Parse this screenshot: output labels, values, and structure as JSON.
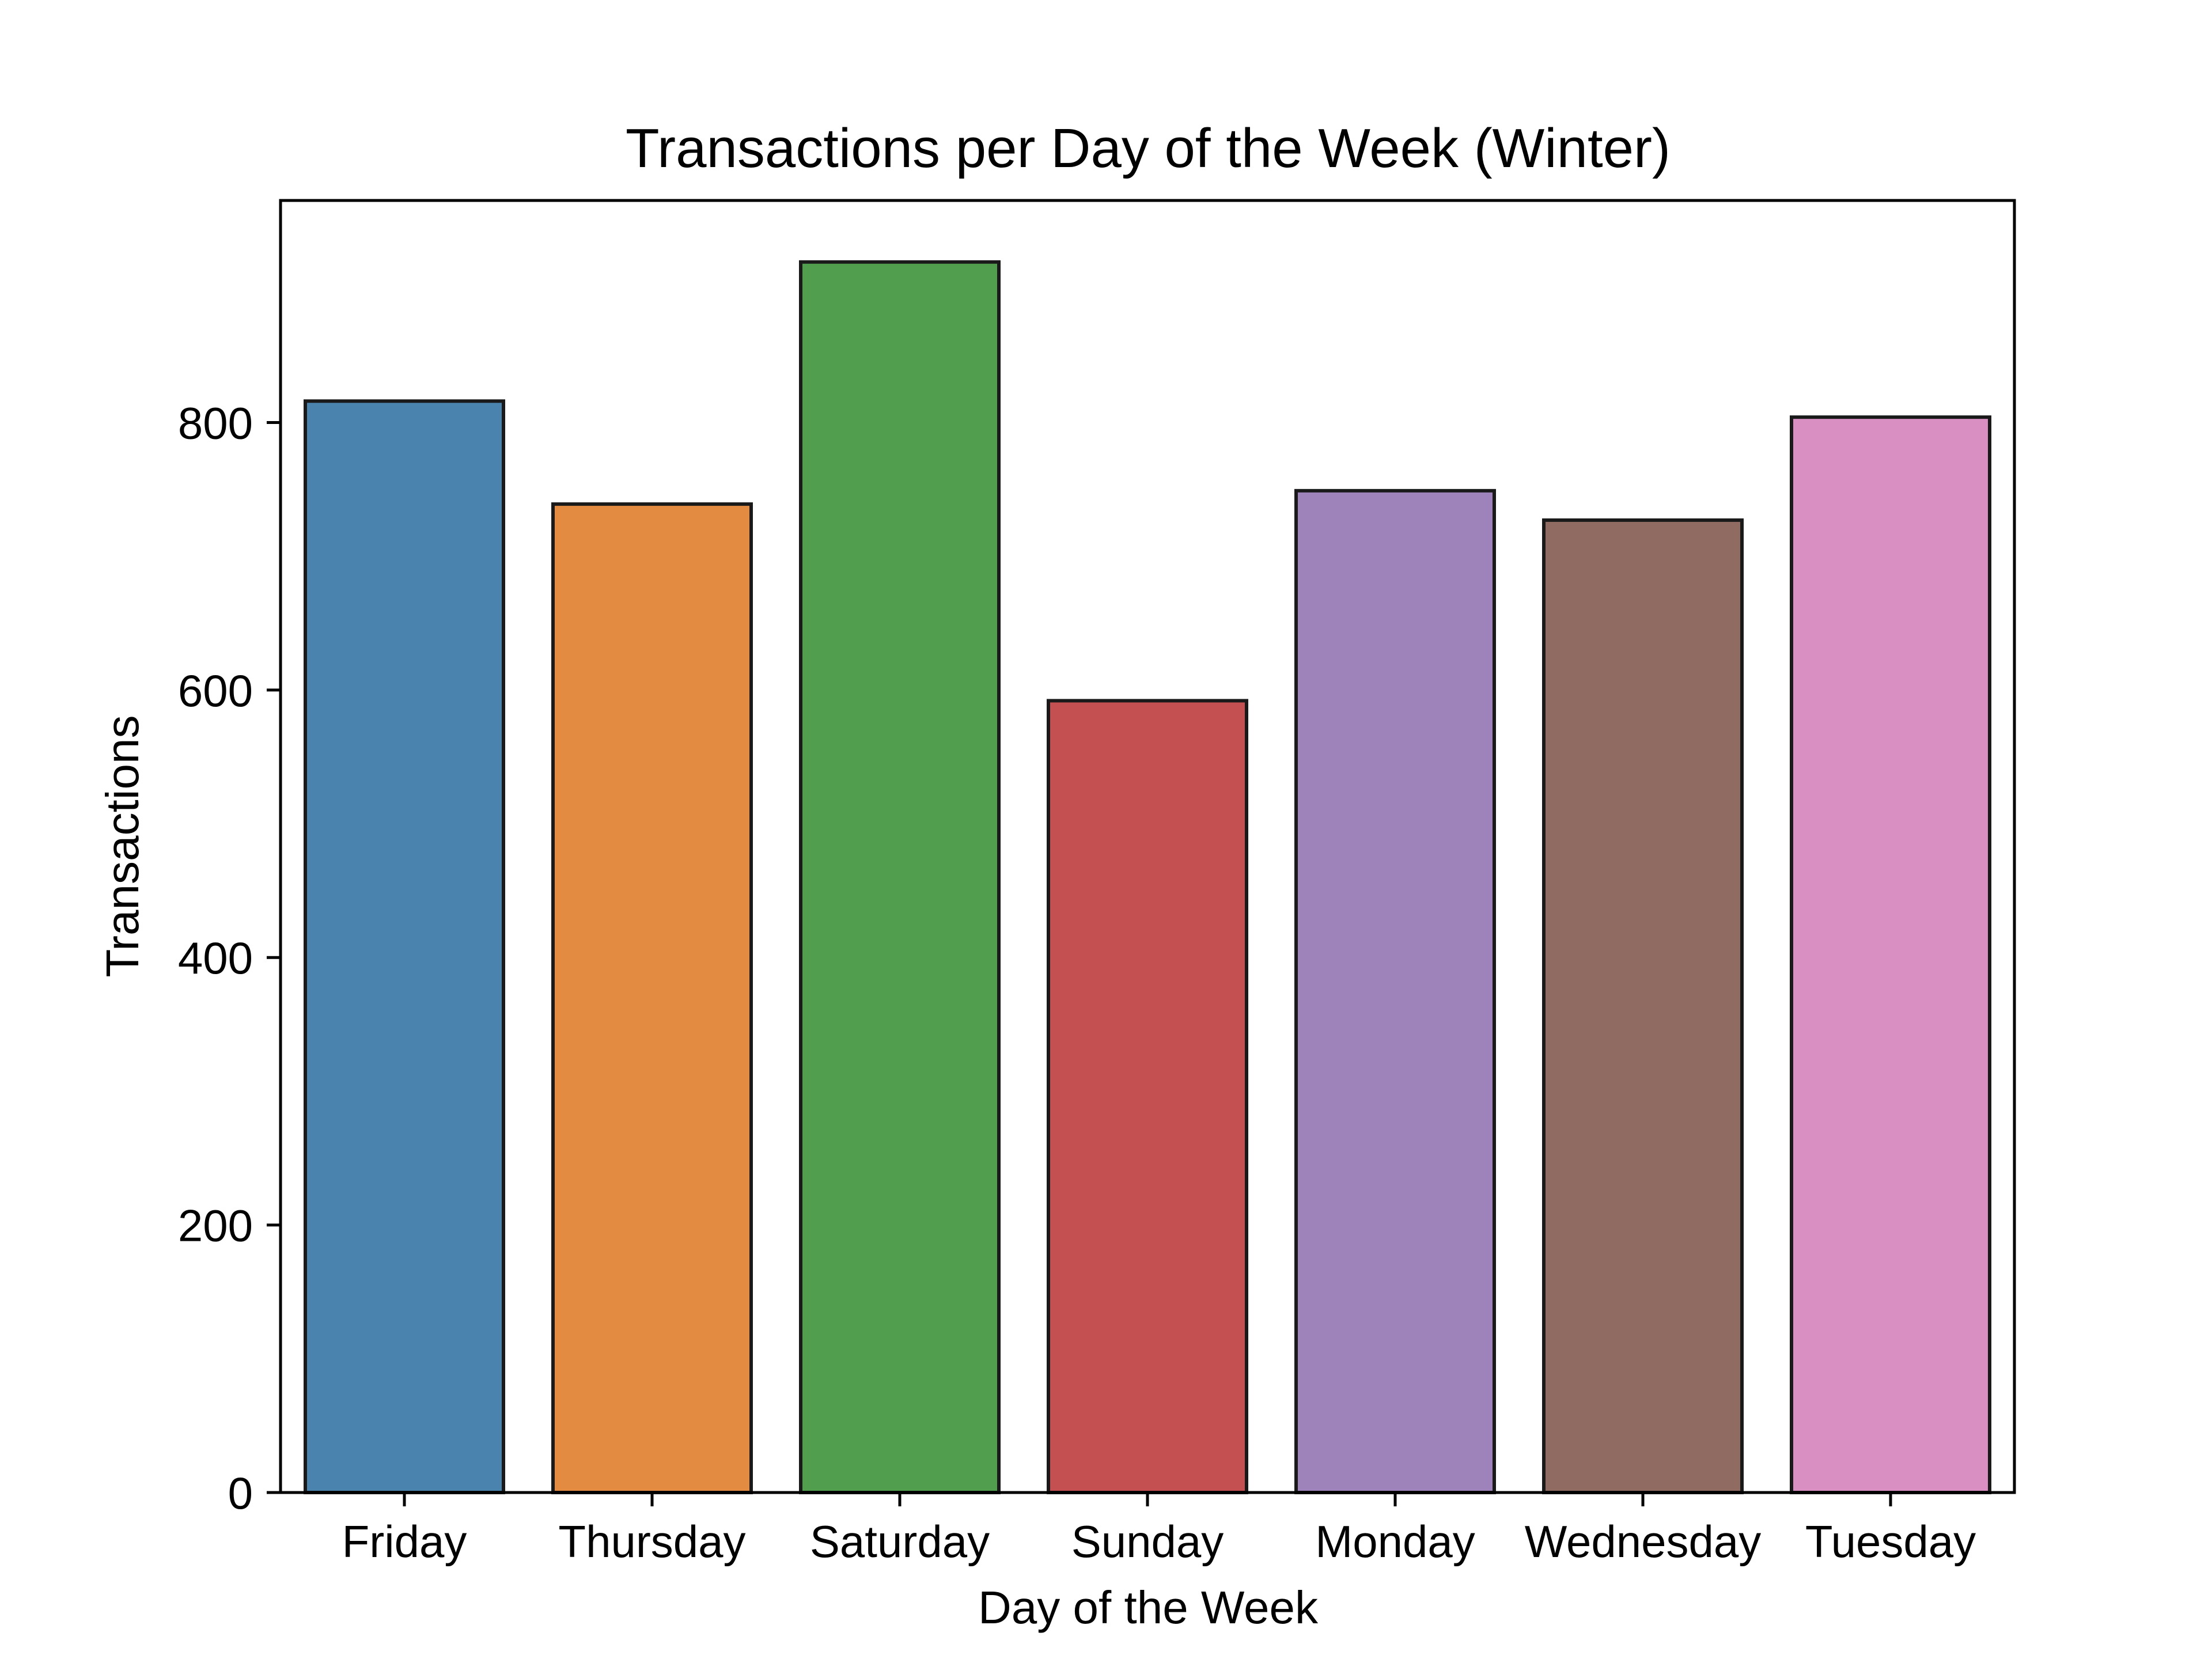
{
  "chart_data": {
    "type": "bar",
    "title": "Transactions per Day of the Week (Winter)",
    "xlabel": "Day of the Week",
    "ylabel": "Transactions",
    "categories": [
      "Friday",
      "Thursday",
      "Saturday",
      "Sunday",
      "Monday",
      "Wednesday",
      "Tuesday"
    ],
    "values": [
      816,
      739,
      920,
      592,
      749,
      727,
      804
    ],
    "colors": [
      "#4a83ad",
      "#e38c41",
      "#519e4e",
      "#c45052",
      "#9e82ba",
      "#8f6b62",
      "#da8fc3"
    ],
    "yticks": [
      0,
      200,
      400,
      600,
      800
    ],
    "ylim": [
      0,
      966
    ],
    "grid": false,
    "legend": "none"
  }
}
